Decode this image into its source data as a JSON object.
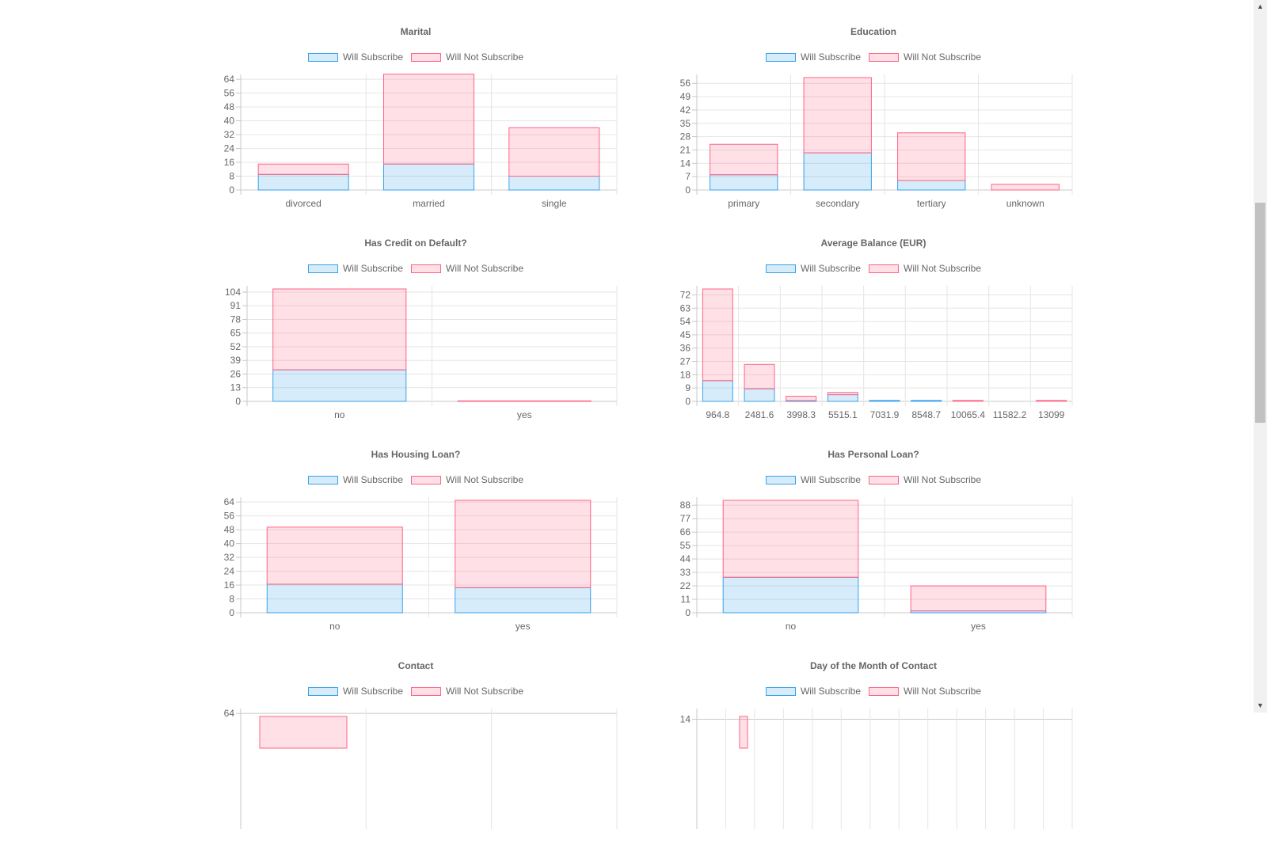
{
  "legend": {
    "subscribe": "Will Subscribe",
    "not_subscribe": "Will Not Subscribe"
  },
  "colors": {
    "subscribe_fill": "rgba(54,162,235,0.2)",
    "subscribe_border": "#36a2eb",
    "not_fill": "rgba(255,99,132,0.2)",
    "not_border": "#ff6384",
    "grid": "#e5e5e5",
    "text": "#666666"
  },
  "scrollbar": {
    "up_icon": "▲",
    "down_icon": "▼"
  },
  "chart_data": [
    {
      "type": "bar",
      "stacked": true,
      "title": "Marital",
      "categories": [
        "divorced",
        "married",
        "single"
      ],
      "series": [
        {
          "name": "Will Subscribe",
          "values": [
            9,
            15,
            8
          ]
        },
        {
          "name": "Will Not Subscribe",
          "values": [
            6,
            52,
            28
          ]
        }
      ],
      "yticks": [
        0,
        8,
        16,
        24,
        32,
        40,
        48,
        56,
        64
      ],
      "ylim": [
        0,
        65
      ]
    },
    {
      "type": "bar",
      "stacked": true,
      "title": "Education",
      "categories": [
        "primary",
        "secondary",
        "tertiary",
        "unknown"
      ],
      "series": [
        {
          "name": "Will Subscribe",
          "values": [
            8,
            19.5,
            5,
            0
          ]
        },
        {
          "name": "Will Not Subscribe",
          "values": [
            16,
            39.5,
            25,
            3
          ]
        }
      ],
      "yticks": [
        0,
        7,
        14,
        21,
        28,
        35,
        42,
        49,
        56
      ],
      "ylim": [
        0,
        59
      ]
    },
    {
      "type": "bar",
      "stacked": true,
      "title": "Has Credit on Default?",
      "categories": [
        "no",
        "yes"
      ],
      "series": [
        {
          "name": "Will Subscribe",
          "values": [
            30,
            0
          ]
        },
        {
          "name": "Will Not Subscribe",
          "values": [
            77,
            0.5
          ]
        }
      ],
      "yticks": [
        0,
        13,
        26,
        39,
        52,
        65,
        78,
        91,
        104
      ],
      "ylim": [
        0,
        107
      ]
    },
    {
      "type": "bar",
      "stacked": true,
      "title": "Average Balance (EUR)",
      "categories": [
        "964.8",
        "2481.6",
        "3998.3",
        "5515.1",
        "7031.9",
        "8548.7",
        "10065.4",
        "11582.2",
        "13099"
      ],
      "series": [
        {
          "name": "Will Subscribe",
          "values": [
            14,
            8.5,
            0.5,
            4.5,
            0.7,
            0.7,
            0,
            0,
            0
          ]
        },
        {
          "name": "Will Not Subscribe",
          "values": [
            62,
            16.5,
            3,
            1.5,
            0,
            0,
            0.7,
            0,
            0.7
          ]
        }
      ],
      "yticks": [
        0,
        9,
        18,
        27,
        36,
        45,
        54,
        63,
        72
      ],
      "ylim": [
        0,
        76
      ]
    },
    {
      "type": "bar",
      "stacked": true,
      "title": "Has Housing Loan?",
      "categories": [
        "no",
        "yes"
      ],
      "series": [
        {
          "name": "Will Subscribe",
          "values": [
            16.5,
            14.5
          ]
        },
        {
          "name": "Will Not Subscribe",
          "values": [
            33,
            50.5
          ]
        }
      ],
      "yticks": [
        0,
        8,
        16,
        24,
        32,
        40,
        48,
        56,
        64
      ],
      "ylim": [
        0,
        65
      ]
    },
    {
      "type": "bar",
      "stacked": true,
      "title": "Has Personal Loan?",
      "categories": [
        "no",
        "yes"
      ],
      "series": [
        {
          "name": "Will Subscribe",
          "values": [
            29,
            1.5
          ]
        },
        {
          "name": "Will Not Subscribe",
          "values": [
            63,
            20.5
          ]
        }
      ],
      "yticks": [
        0,
        11,
        22,
        33,
        44,
        55,
        66,
        77,
        88
      ],
      "ylim": [
        0,
        92
      ]
    },
    {
      "type": "bar",
      "stacked": true,
      "title": "Contact",
      "categories": [],
      "series": [],
      "yticks": [
        64
      ],
      "ylim": [
        0,
        65
      ],
      "partial": true
    },
    {
      "type": "bar",
      "stacked": true,
      "title": "Day of the Month of Contact",
      "categories": [],
      "series": [],
      "yticks": [
        14
      ],
      "ylim": [
        0,
        15
      ],
      "partial": true
    }
  ]
}
